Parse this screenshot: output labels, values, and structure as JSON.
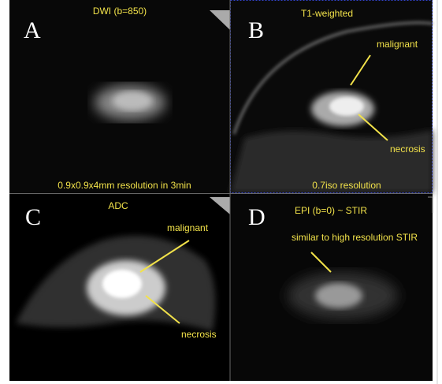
{
  "panels": [
    {
      "letter": "A",
      "title": "DWI (b=850)",
      "caption": "0.9x0.9x4mm resolution in 3min",
      "annotations": []
    },
    {
      "letter": "B",
      "title": "T1-weighted",
      "caption": "0.7iso resolution",
      "annotations": [
        "malignant",
        "necrosis"
      ]
    },
    {
      "letter": "C",
      "title": "ADC",
      "caption": null,
      "annotations": [
        "malignant",
        "necrosis"
      ]
    },
    {
      "letter": "D",
      "title": "EPI (b=0) ~ STIR",
      "caption": null,
      "annotations": [
        "similar to high resolution STIR"
      ]
    }
  ]
}
